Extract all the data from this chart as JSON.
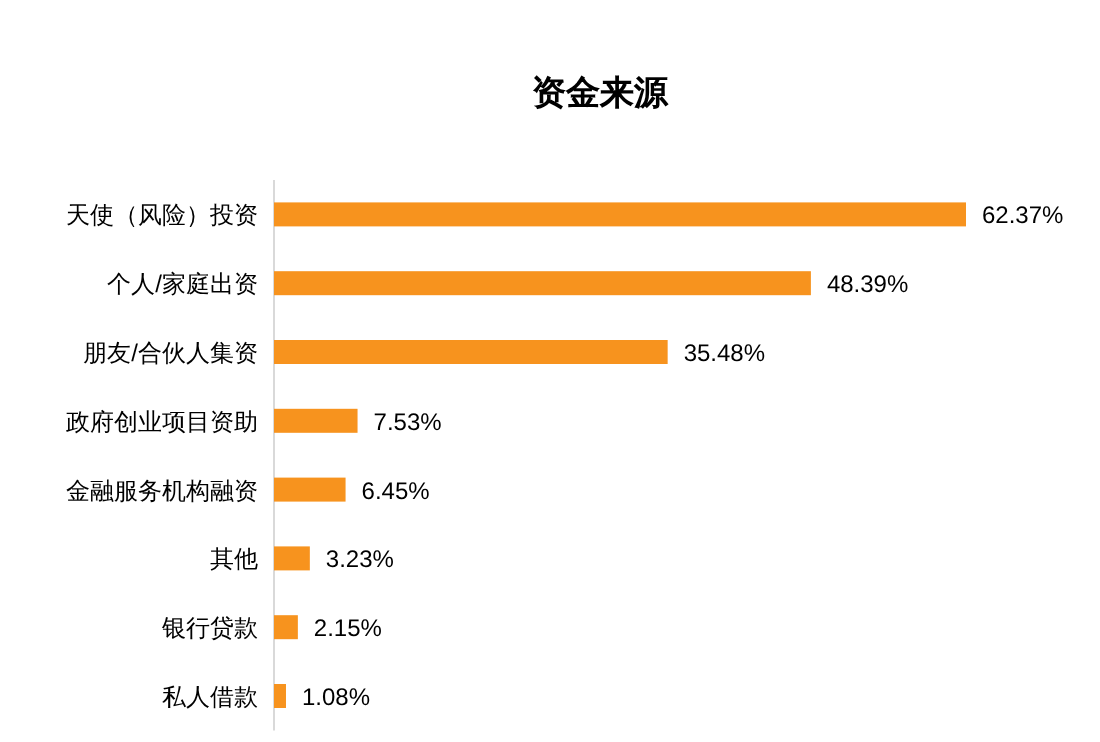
{
  "chart_data": {
    "type": "bar",
    "orientation": "horizontal",
    "title": "资金来源",
    "categories": [
      "天使（风险）投资",
      "个人/家庭出资",
      "朋友/合伙人集资",
      "政府创业项目资助",
      "金融服务机构融资",
      "其他",
      "银行贷款",
      "私人借款"
    ],
    "values": [
      62.37,
      48.39,
      35.48,
      7.53,
      6.45,
      3.23,
      2.15,
      1.08
    ],
    "value_labels": [
      "62.37%",
      "48.39%",
      "35.48%",
      "7.53%",
      "6.45%",
      "3.23%",
      "2.15%",
      "1.08%"
    ],
    "color": "#f7931e"
  }
}
